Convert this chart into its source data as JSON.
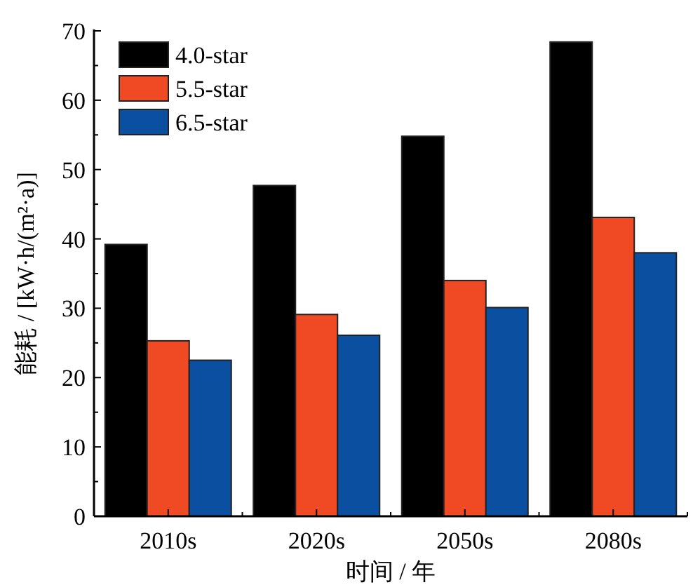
{
  "chart_data": {
    "type": "bar",
    "xlabel": "时间 / 年",
    "ylabel": "能耗 / [kW·h/(m²·a)]",
    "categories": [
      "2010s",
      "2020s",
      "2050s",
      "2080s"
    ],
    "series": [
      {
        "name": "4.0-star",
        "color": "#000000",
        "values": [
          39.2,
          47.7,
          54.8,
          68.4
        ]
      },
      {
        "name": "5.5-star",
        "color": "#f04a24",
        "values": [
          25.3,
          29.1,
          34.0,
          43.1
        ]
      },
      {
        "name": "6.5-star",
        "color": "#0b4fa0",
        "values": [
          22.5,
          26.1,
          30.1,
          38.0
        ]
      }
    ],
    "ylim": [
      0,
      70
    ],
    "yticks": [
      0,
      {
        "value": 5,
        "label": null
      },
      10,
      {
        "value": 15,
        "label": null
      },
      20,
      {
        "value": 25,
        "label": null
      },
      30,
      {
        "value": 35,
        "label": null
      },
      40,
      {
        "value": 45,
        "label": null
      },
      50,
      {
        "value": 55,
        "label": null
      },
      60,
      {
        "value": 65,
        "label": null
      },
      70
    ],
    "legend": "top left"
  }
}
